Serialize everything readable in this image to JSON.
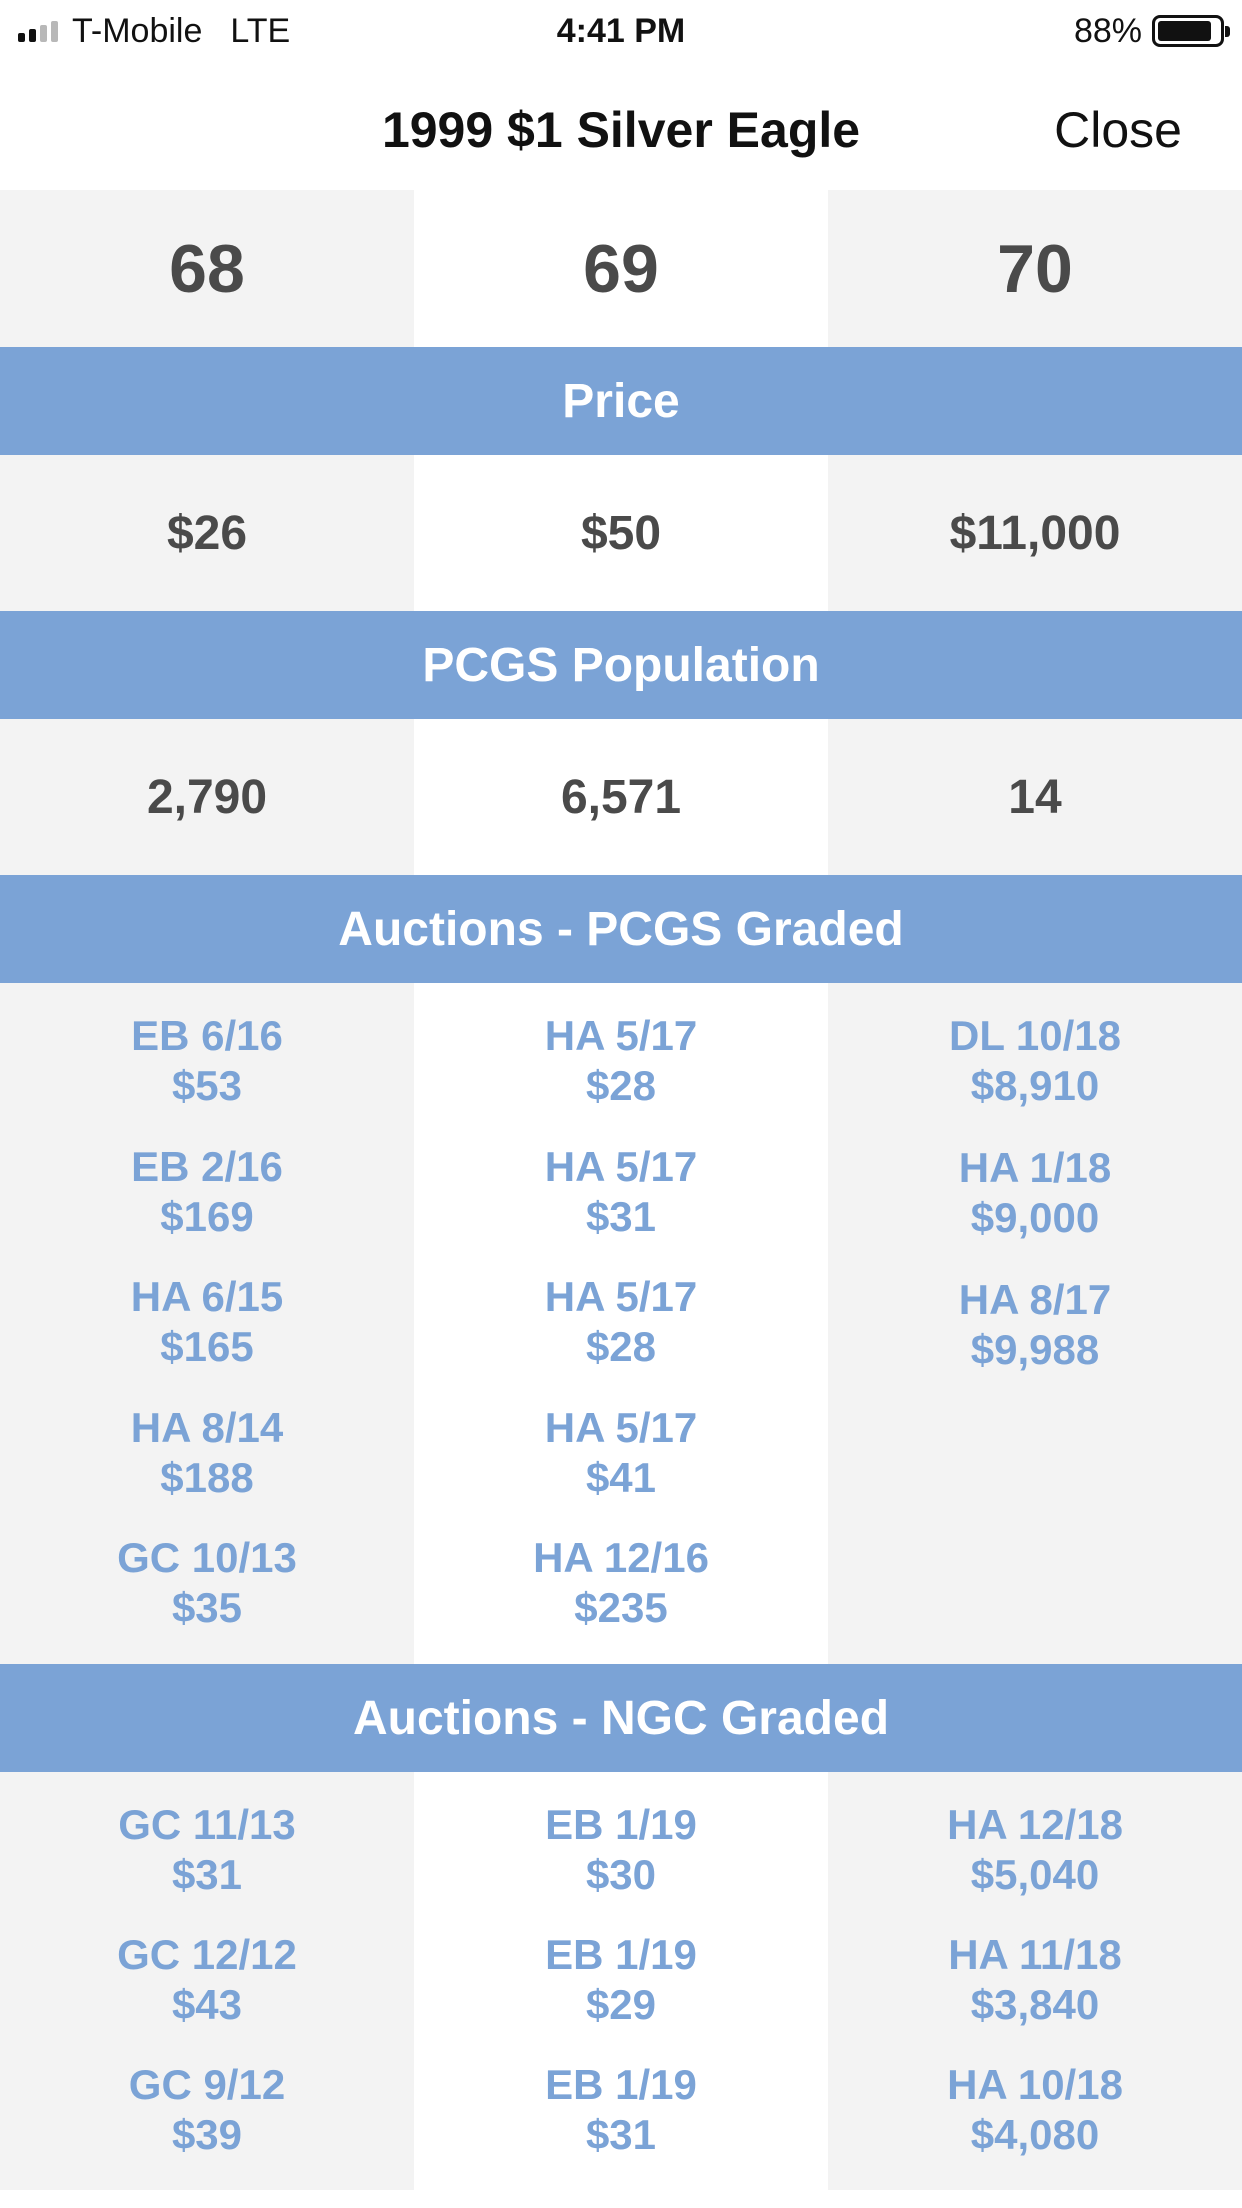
{
  "status_bar": {
    "carrier": "T-Mobile",
    "network": "LTE",
    "time": "4:41 PM",
    "battery_percent": "88%",
    "battery_level": 0.88
  },
  "nav": {
    "title": "1999 $1 Silver Eagle",
    "close_label": "Close"
  },
  "grades": [
    "68",
    "69",
    "70"
  ],
  "sections": {
    "price": "Price",
    "population": "PCGS Population",
    "auctions_pcgs": "Auctions - PCGS Graded",
    "auctions_ngc": "Auctions - NGC Graded"
  },
  "prices": [
    "$26",
    "$50",
    "$11,000"
  ],
  "population": [
    "2,790",
    "6,571",
    "14"
  ],
  "auctions_pcgs": [
    [
      {
        "source": "EB 6/16",
        "price": "$53"
      },
      {
        "source": "EB 2/16",
        "price": "$169"
      },
      {
        "source": "HA 6/15",
        "price": "$165"
      },
      {
        "source": "HA 8/14",
        "price": "$188"
      },
      {
        "source": "GC 10/13",
        "price": "$35"
      }
    ],
    [
      {
        "source": "HA 5/17",
        "price": "$28"
      },
      {
        "source": "HA 5/17",
        "price": "$31"
      },
      {
        "source": "HA 5/17",
        "price": "$28"
      },
      {
        "source": "HA 5/17",
        "price": "$41"
      },
      {
        "source": "HA 12/16",
        "price": "$235"
      }
    ],
    [
      {
        "source": "DL 10/18",
        "price": "$8,910"
      },
      {
        "source": "HA 1/18",
        "price": "$9,000"
      },
      {
        "source": "HA 8/17",
        "price": "$9,988"
      }
    ]
  ],
  "auctions_ngc": [
    [
      {
        "source": "GC 11/13",
        "price": "$31"
      },
      {
        "source": "GC 12/12",
        "price": "$43"
      },
      {
        "source": "GC 9/12",
        "price": "$39"
      }
    ],
    [
      {
        "source": "EB 1/19",
        "price": "$30"
      },
      {
        "source": "EB 1/19",
        "price": "$29"
      },
      {
        "source": "EB 1/19",
        "price": "$31"
      }
    ],
    [
      {
        "source": "HA 12/18",
        "price": "$5,040"
      },
      {
        "source": "HA 11/18",
        "price": "$3,840"
      },
      {
        "source": "HA 10/18",
        "price": "$4,080"
      }
    ]
  ],
  "colors": {
    "accent": "#7ba3d6",
    "text_dark": "#4a4a4a",
    "cell_gray": "#f3f3f3"
  }
}
